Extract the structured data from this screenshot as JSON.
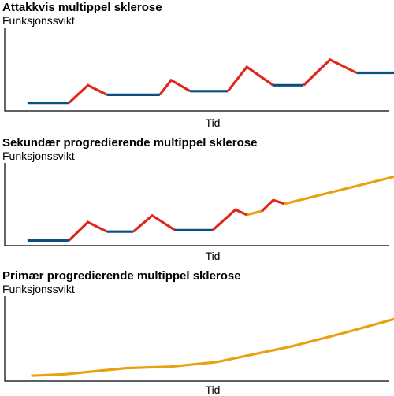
{
  "colors": {
    "relapse": "#e1261c",
    "remission": "#0a4f82",
    "progression": "#e8a10f",
    "axis": "#000000"
  },
  "chart_data": [
    {
      "type": "line",
      "title": "Attakkvis multippel sklerose",
      "ylabel": "Funksjonssvikt",
      "xlabel": "Tid",
      "xlim": [
        0,
        100
      ],
      "ylim": [
        0,
        100
      ],
      "segments": [
        {
          "kind": "remission",
          "points": [
            [
              6,
              9
            ],
            [
              17,
              9
            ]
          ]
        },
        {
          "kind": "relapse",
          "points": [
            [
              17,
              9
            ],
            [
              22,
              33
            ],
            [
              27,
              20
            ]
          ]
        },
        {
          "kind": "remission",
          "points": [
            [
              27,
              20
            ],
            [
              41,
              20
            ]
          ]
        },
        {
          "kind": "relapse",
          "points": [
            [
              41,
              20
            ],
            [
              44,
              40
            ],
            [
              49,
              25
            ]
          ]
        },
        {
          "kind": "remission",
          "points": [
            [
              49,
              25
            ],
            [
              59,
              25
            ]
          ]
        },
        {
          "kind": "relapse",
          "points": [
            [
              59,
              25
            ],
            [
              64,
              58
            ],
            [
              71,
              33
            ]
          ]
        },
        {
          "kind": "remission",
          "points": [
            [
              71,
              33
            ],
            [
              79,
              33
            ]
          ]
        },
        {
          "kind": "relapse",
          "points": [
            [
              79,
              33
            ],
            [
              86,
              68
            ],
            [
              93,
              50
            ]
          ]
        },
        {
          "kind": "remission",
          "points": [
            [
              93,
              50
            ],
            [
              103,
              50
            ]
          ]
        }
      ]
    },
    {
      "type": "line",
      "title": "Sekundær progredierende multippel sklerose",
      "ylabel": "Funksjonssvikt",
      "xlabel": "Tid",
      "xlim": [
        0,
        100
      ],
      "ylim": [
        0,
        100
      ],
      "segments": [
        {
          "kind": "remission",
          "points": [
            [
              6,
              5
            ],
            [
              17,
              5
            ]
          ]
        },
        {
          "kind": "relapse",
          "points": [
            [
              17,
              5
            ],
            [
              22,
              30
            ],
            [
              27,
              17
            ]
          ]
        },
        {
          "kind": "remission",
          "points": [
            [
              27,
              17
            ],
            [
              34,
              17
            ]
          ]
        },
        {
          "kind": "relapse",
          "points": [
            [
              34,
              17
            ],
            [
              39,
              39
            ],
            [
              45,
              19
            ]
          ]
        },
        {
          "kind": "remission",
          "points": [
            [
              45,
              19
            ],
            [
              55,
              19
            ]
          ]
        },
        {
          "kind": "relapse",
          "points": [
            [
              55,
              19
            ],
            [
              61,
              47
            ],
            [
              64,
              40
            ]
          ]
        },
        {
          "kind": "progression",
          "points": [
            [
              64,
              40
            ],
            [
              68,
              45
            ]
          ]
        },
        {
          "kind": "relapse",
          "points": [
            [
              68,
              45
            ],
            [
              71,
              60
            ],
            [
              74,
              55
            ]
          ]
        },
        {
          "kind": "progression",
          "points": [
            [
              74,
              55
            ],
            [
              103,
              92
            ]
          ]
        }
      ]
    },
    {
      "type": "line",
      "title": "Primær progredierende multippel sklerose",
      "ylabel": "Funksjonssvikt",
      "xlabel": "Tid",
      "xlim": [
        0,
        100
      ],
      "ylim": [
        0,
        100
      ],
      "segments": [
        {
          "kind": "progression",
          "points": [
            [
              7,
              5
            ],
            [
              16,
              7
            ],
            [
              32,
              15
            ],
            [
              44,
              17
            ],
            [
              56,
              23
            ],
            [
              76,
              44
            ],
            [
              90,
              62
            ],
            [
              103,
              80
            ]
          ]
        }
      ]
    }
  ]
}
